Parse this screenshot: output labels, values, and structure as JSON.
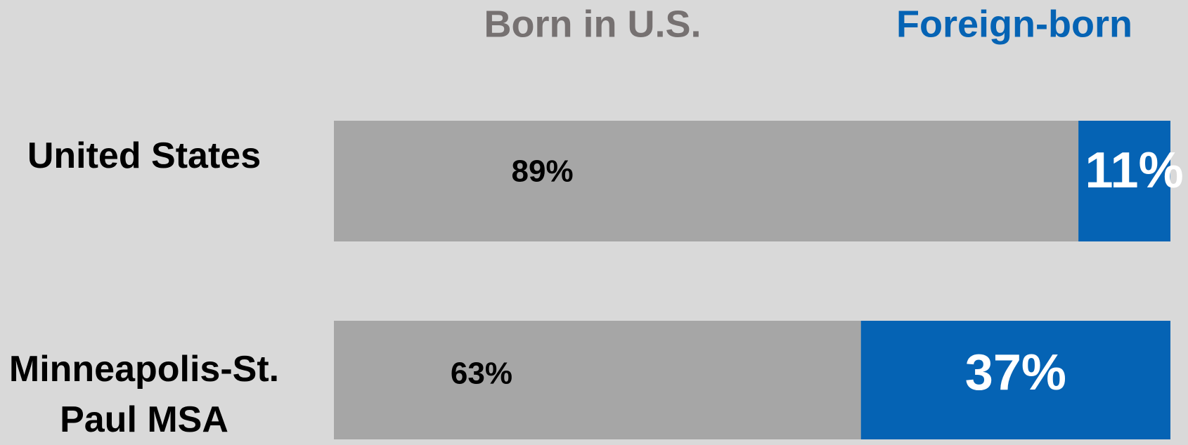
{
  "chart_data": {
    "type": "stacked-bar",
    "categories": [
      "United States",
      "Minneapolis-St. Paul MSA"
    ],
    "series": [
      {
        "name": "Born in U.S.",
        "color": "#a6a6a6",
        "values": [
          89,
          63
        ],
        "value_labels": [
          "89%",
          "63%"
        ]
      },
      {
        "name": "Foreign-born",
        "color": "#0563b4",
        "values": [
          11,
          37
        ],
        "value_labels": [
          "11%",
          "37%"
        ]
      }
    ],
    "xlim": [
      0,
      100
    ],
    "orientation": "horizontal"
  }
}
